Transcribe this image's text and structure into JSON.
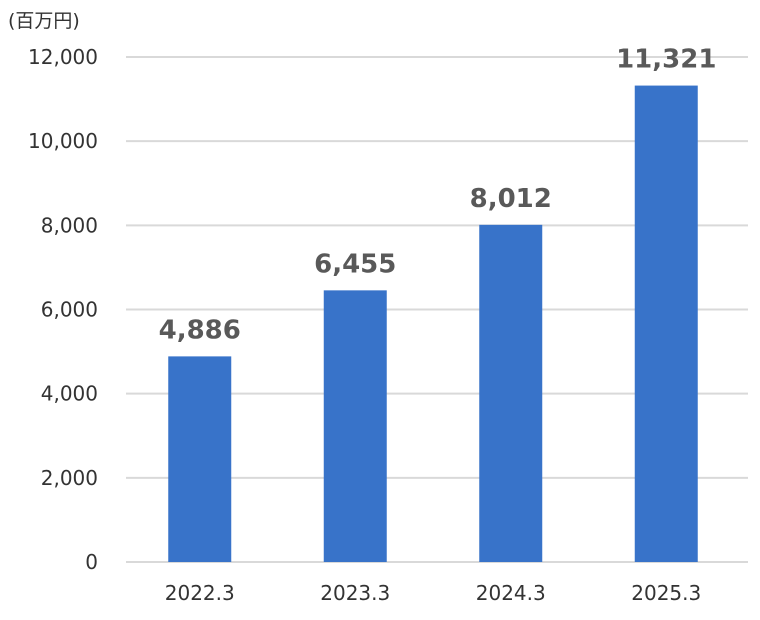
{
  "chart_data": {
    "type": "bar",
    "unit_label": "(百万円)",
    "categories": [
      "2022.3",
      "2023.3",
      "2024.3",
      "2025.3"
    ],
    "values": [
      4886,
      6455,
      8012,
      11321
    ],
    "data_labels": [
      "4,886",
      "6,455",
      "8,012",
      "11,321"
    ],
    "ylim": [
      0,
      12000
    ],
    "yticks": [
      0,
      2000,
      4000,
      6000,
      8000,
      10000,
      12000
    ],
    "ytick_labels": [
      "0",
      "2,000",
      "4,000",
      "6,000",
      "8,000",
      "10,000",
      "12,000"
    ],
    "grid": true,
    "bar_color": "#3873C9",
    "grid_color": "#D9D9D9"
  }
}
